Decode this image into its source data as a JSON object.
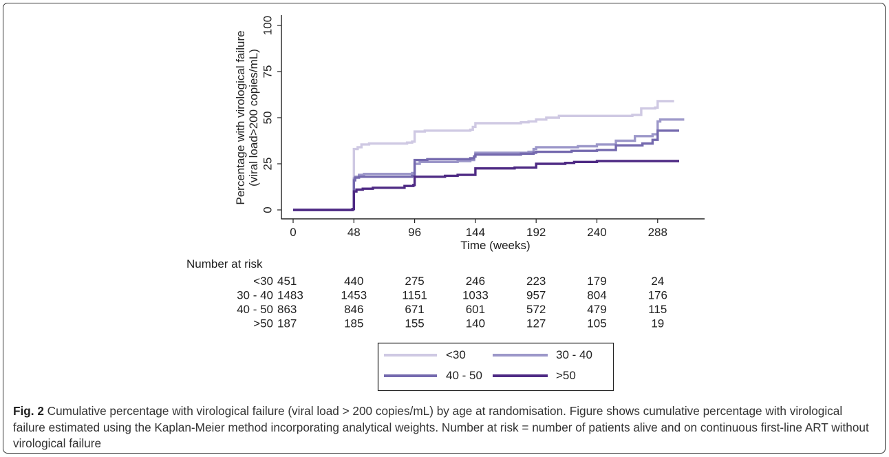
{
  "chart_data": {
    "type": "line",
    "style": "step",
    "ylabel": "Percentage with virological failure (viral load>200 copies/mL)",
    "xlabel": "Time (weeks)",
    "xlim": [
      0,
      324
    ],
    "ylim": [
      0,
      100
    ],
    "x_ticks": [
      0,
      48,
      96,
      144,
      192,
      240,
      288
    ],
    "y_ticks": [
      0,
      25,
      50,
      75,
      100
    ],
    "legend_position": "bottom",
    "grid": false,
    "series": [
      {
        "name": "<30",
        "color": "#cfc9e3",
        "points": [
          [
            0,
            0
          ],
          [
            46,
            0
          ],
          [
            47,
            0.5
          ],
          [
            48,
            33
          ],
          [
            51,
            34
          ],
          [
            54,
            35.5
          ],
          [
            60,
            36
          ],
          [
            90,
            36.5
          ],
          [
            94,
            37
          ],
          [
            96,
            42.5
          ],
          [
            104,
            43
          ],
          [
            140,
            43.5
          ],
          [
            142,
            45
          ],
          [
            144,
            47
          ],
          [
            180,
            47.5
          ],
          [
            186,
            48
          ],
          [
            192,
            49
          ],
          [
            200,
            50
          ],
          [
            210,
            51
          ],
          [
            268,
            51.5
          ],
          [
            275,
            55
          ],
          [
            286,
            55.5
          ],
          [
            288,
            59
          ],
          [
            301,
            59
          ]
        ]
      },
      {
        "name": "30 - 40",
        "color": "#9c97c9",
        "points": [
          [
            0,
            0
          ],
          [
            46,
            0
          ],
          [
            47,
            0.5
          ],
          [
            48,
            17
          ],
          [
            49,
            18
          ],
          [
            52,
            19
          ],
          [
            56,
            19.5
          ],
          [
            94,
            20
          ],
          [
            96,
            25
          ],
          [
            100,
            26
          ],
          [
            130,
            26.5
          ],
          [
            140,
            27
          ],
          [
            143,
            29
          ],
          [
            144,
            31
          ],
          [
            186,
            31.5
          ],
          [
            190,
            33
          ],
          [
            192,
            34
          ],
          [
            225,
            34.5
          ],
          [
            240,
            35.5
          ],
          [
            255,
            37.5
          ],
          [
            270,
            40
          ],
          [
            284,
            41
          ],
          [
            288,
            48
          ],
          [
            290,
            49
          ],
          [
            309,
            49
          ]
        ]
      },
      {
        "name": "40 - 50",
        "color": "#7469ae",
        "points": [
          [
            0,
            0
          ],
          [
            46,
            0
          ],
          [
            47,
            0.5
          ],
          [
            48,
            16
          ],
          [
            49,
            17.5
          ],
          [
            52,
            18
          ],
          [
            94,
            18.5
          ],
          [
            96,
            27
          ],
          [
            106,
            27.5
          ],
          [
            140,
            28
          ],
          [
            143,
            29
          ],
          [
            144,
            30
          ],
          [
            180,
            30.5
          ],
          [
            190,
            31
          ],
          [
            192,
            31.5
          ],
          [
            220,
            32
          ],
          [
            240,
            32.5
          ],
          [
            255,
            35
          ],
          [
            276,
            36
          ],
          [
            284,
            38
          ],
          [
            288,
            43
          ],
          [
            305,
            43
          ]
        ]
      },
      {
        "name": ">50",
        "color": "#4e2a84",
        "points": [
          [
            0,
            0
          ],
          [
            46,
            0
          ],
          [
            47,
            0.5
          ],
          [
            48,
            10
          ],
          [
            50,
            11
          ],
          [
            55,
            11.5
          ],
          [
            63,
            12
          ],
          [
            88,
            13
          ],
          [
            95,
            13.5
          ],
          [
            96,
            18
          ],
          [
            120,
            18.5
          ],
          [
            130,
            19
          ],
          [
            144,
            22.5
          ],
          [
            175,
            23
          ],
          [
            192,
            25
          ],
          [
            215,
            25.5
          ],
          [
            222,
            26
          ],
          [
            240,
            26.5
          ],
          [
            305,
            26.5
          ]
        ]
      }
    ]
  },
  "risk_table": {
    "title": "Number at risk",
    "rows": [
      {
        "label": "<30",
        "values": [
          "451",
          "440",
          "275",
          "246",
          "223",
          "179",
          "24"
        ]
      },
      {
        "label": "30 - 40",
        "values": [
          "1483",
          "1453",
          "1151",
          "1033",
          "957",
          "804",
          "176"
        ]
      },
      {
        "label": "40 - 50",
        "values": [
          "863",
          "846",
          "671",
          "601",
          "572",
          "479",
          "115"
        ]
      },
      {
        "label": ">50",
        "values": [
          "187",
          "185",
          "155",
          "140",
          "127",
          "105",
          "19"
        ]
      }
    ]
  },
  "caption": {
    "label": "Fig. 2",
    "text": "Cumulative percentage with virological failure (viral load > 200 copies/mL) by age at randomisation. Figure shows cumulative percentage with virological failure estimated using the Kaplan-Meier method incorporating analytical weights. Number at risk = number of patients alive and on continuous first-line ART without virological failure"
  }
}
